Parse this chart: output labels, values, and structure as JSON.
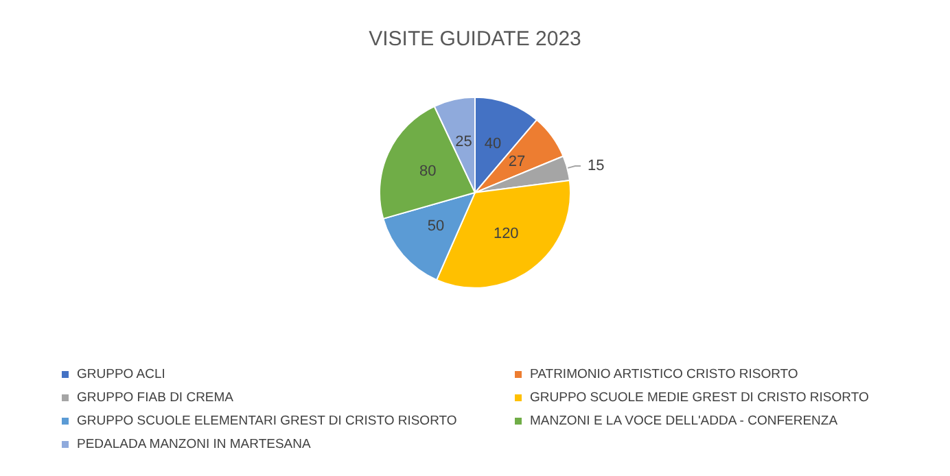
{
  "chart_data": {
    "type": "pie",
    "title": "VISITE GUIDATE 2023",
    "categories": [
      "GRUPPO ACLI",
      "PATRIMONIO ARTISTICO CRISTO RISORTO",
      "GRUPPO FIAB DI CREMA",
      "GRUPPO SCUOLE MEDIE GREST DI CRISTO RISORTO",
      "GRUPPO SCUOLE ELEMENTARI GREST DI CRISTO RISORTO",
      "MANZONI E LA VOCE DELL'ADDA - CONFERENZA",
      "PEDALADA MANZONI IN MARTESANA"
    ],
    "values": [
      40,
      27,
      15,
      120,
      50,
      80,
      25
    ],
    "colors": [
      "#4472c4",
      "#ed7d31",
      "#a5a5a5",
      "#ffc000",
      "#5b9bd5",
      "#70ad47",
      "#8faadc"
    ],
    "data_labels": true,
    "legend": "bottom"
  }
}
